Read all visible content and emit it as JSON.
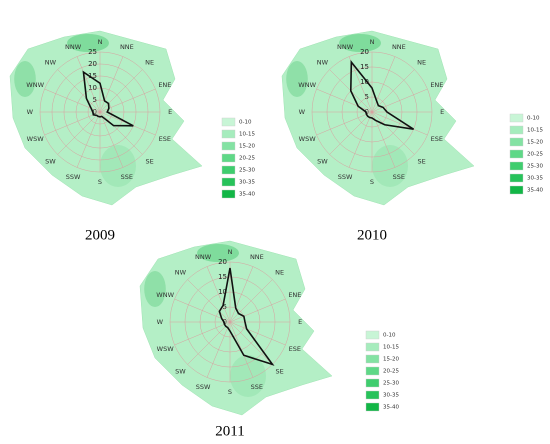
{
  "chart_data": [
    {
      "type": "radar",
      "title": "2009",
      "categories": [
        "N",
        "NNE",
        "NE",
        "ENE",
        "E",
        "ESE",
        "SE",
        "SSE",
        "S",
        "SSW",
        "SW",
        "WSW",
        "W",
        "WNW",
        "NW",
        "NNW"
      ],
      "values": [
        12,
        5,
        5,
        4,
        3,
        15,
        8,
        2,
        2,
        2,
        2,
        3,
        3,
        4,
        8,
        18
      ],
      "rlim": [
        0,
        25
      ],
      "rticks": [
        0,
        5,
        10,
        15,
        20,
        25
      ],
      "color": "#111111",
      "legend": {
        "labels": [
          "0-10",
          "10-15",
          "15-20",
          "20-25",
          "25-30",
          "30-35",
          "35-40"
        ],
        "colors": [
          "#c8f5d6",
          "#a6ecbd",
          "#84e2a3",
          "#5fd887",
          "#3fcd6e",
          "#27c25a",
          "#12b646"
        ]
      }
    },
    {
      "type": "radar",
      "title": "2010",
      "categories": [
        "N",
        "NNE",
        "NE",
        "ENE",
        "E",
        "ESE",
        "SE",
        "SSE",
        "S",
        "SSW",
        "SW",
        "WSW",
        "W",
        "WNW",
        "NW",
        "NNW"
      ],
      "values": [
        8,
        4,
        3,
        4,
        5,
        15,
        6,
        3,
        2,
        2,
        2,
        2,
        2,
        5,
        10,
        18
      ],
      "rlim": [
        0,
        20
      ],
      "rticks": [
        0,
        5,
        10,
        15,
        20
      ],
      "color": "#111111",
      "legend": {
        "labels": [
          "0-10",
          "10-15",
          "15-20",
          "20-25",
          "25-30",
          "30-35",
          "35-40"
        ],
        "colors": [
          "#c8f5d6",
          "#a6ecbd",
          "#84e2a3",
          "#5fd887",
          "#3fcd6e",
          "#27c25a",
          "#12b646"
        ]
      }
    },
    {
      "type": "radar",
      "title": "2011",
      "categories": [
        "N",
        "NNE",
        "NE",
        "ENE",
        "E",
        "ESE",
        "SE",
        "SSE",
        "S",
        "SSW",
        "SW",
        "WSW",
        "W",
        "WNW",
        "NW",
        "NNW"
      ],
      "values": [
        18,
        5,
        4,
        5,
        5,
        6,
        20,
        12,
        3,
        2,
        2,
        2,
        2,
        3,
        5,
        6
      ],
      "rlim": [
        0,
        20
      ],
      "rticks": [
        0,
        5,
        10,
        15,
        20
      ],
      "color": "#111111",
      "legend": {
        "labels": [
          "0-10",
          "10-15",
          "15-20",
          "20-25",
          "25-30",
          "30-35",
          "35-40"
        ],
        "colors": [
          "#c8f5d6",
          "#a6ecbd",
          "#84e2a3",
          "#5fd887",
          "#3fcd6e",
          "#27c25a",
          "#12b646"
        ]
      }
    }
  ]
}
